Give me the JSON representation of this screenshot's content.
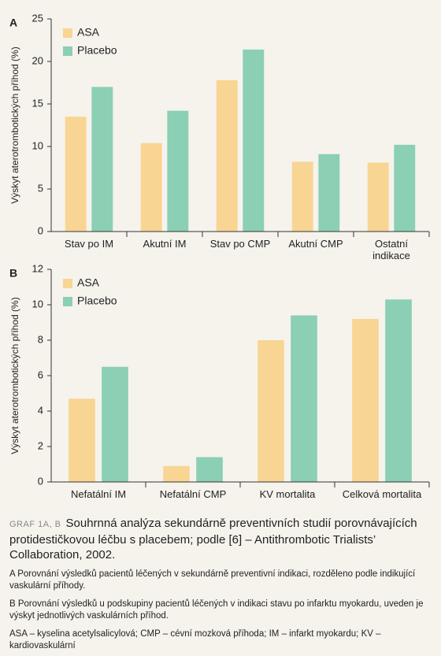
{
  "chart_data": [
    {
      "type": "bar",
      "panel": "A",
      "y_label": "Výskyt aterotrombotických příhod (%)",
      "categories": [
        "Stav po IM",
        "Akutní IM",
        "Stav po CMP",
        "Akutní CMP",
        "Ostatní indikace"
      ],
      "series": [
        {
          "name": "ASA",
          "color": "#f9d593",
          "values": [
            13.5,
            10.4,
            17.8,
            8.2,
            8.1
          ]
        },
        {
          "name": "Placebo",
          "color": "#8bcfb4",
          "values": [
            17.0,
            14.2,
            21.4,
            9.1,
            10.2
          ]
        }
      ],
      "ylim": [
        0,
        25
      ],
      "yticks": [
        0,
        5,
        10,
        15,
        20,
        25
      ],
      "legend": "upper left"
    },
    {
      "type": "bar",
      "panel": "B",
      "y_label": "Výskyt aterotrombotických příhod (%)",
      "categories": [
        "Nefatální IM",
        "Nefatální CMP",
        "KV mortalita",
        "Celková mortalita"
      ],
      "series": [
        {
          "name": "ASA",
          "color": "#f9d593",
          "values": [
            4.7,
            0.9,
            8.0,
            9.2
          ]
        },
        {
          "name": "Placebo",
          "color": "#8bcfb4",
          "values": [
            6.5,
            1.4,
            9.4,
            10.3
          ]
        }
      ],
      "ylim": [
        0,
        12
      ],
      "yticks": [
        0,
        2,
        4,
        6,
        8,
        10,
        12
      ],
      "legend": "upper left"
    }
  ],
  "caption": {
    "label": "GRAF 1A, B",
    "title": "Souhrnná analýza sekundárně preventivních studií porovnávajících protidestičkovou léčbu s placebem; podle [6] – Antithrombotic Trialists’ Collaboration, 2002.",
    "notes": [
      "A Porovnání výsledků pacientů léčených v sekundárně preventivní indikaci, rozděleno podle indikující vaskulární příhody.",
      "B Porovnání výsledků u podskupiny pacientů léčených v indikaci stavu po infarktu myokardu, uveden je výskyt jednotlivých vaskulárních příhod.",
      "ASA – kyselina acetylsalicylová; CMP – cévní mozková příhoda; IM – infarkt myokardu; KV – kardiovaskulární"
    ]
  }
}
